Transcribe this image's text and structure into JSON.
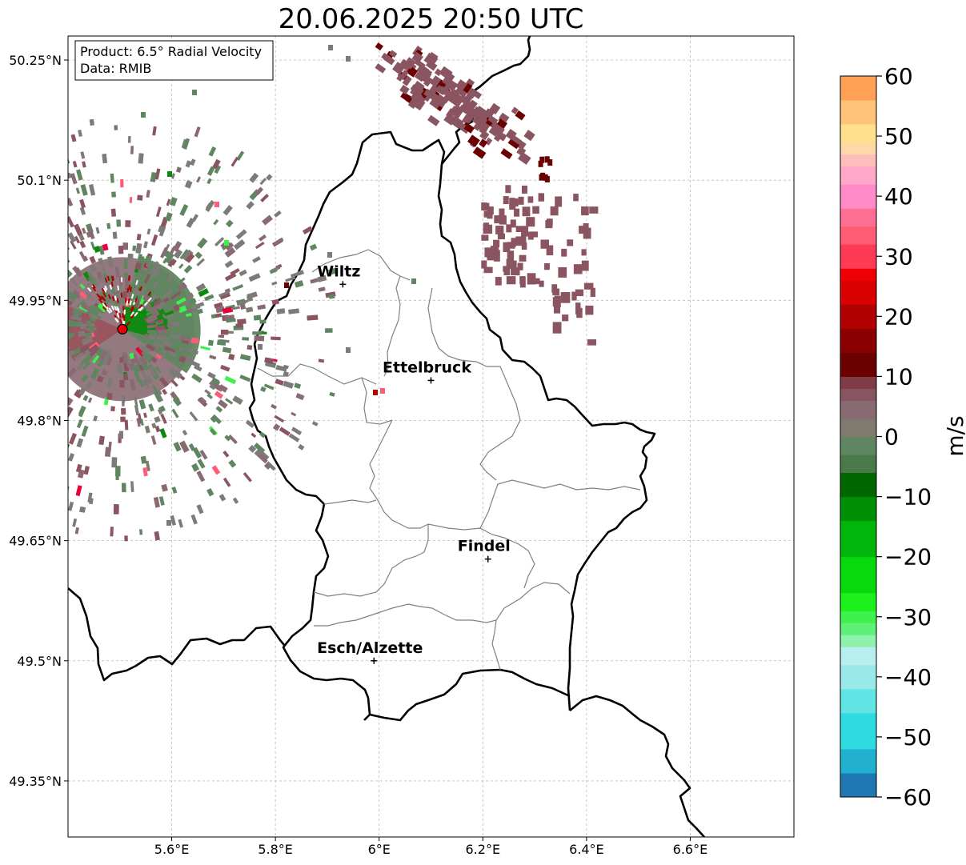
{
  "title": "20.06.2025 20:50 UTC",
  "info_box": {
    "product": "Product: 6.5° Radial Velocity",
    "source": "Data: RMIB"
  },
  "axes": {
    "lon_range": [
      5.4,
      6.8
    ],
    "lat_range": [
      49.28,
      50.28
    ],
    "lon_ticks": [
      {
        "value": 5.6,
        "label": "5.6°E"
      },
      {
        "value": 5.8,
        "label": "5.8°E"
      },
      {
        "value": 6.0,
        "label": "6°E"
      },
      {
        "value": 6.2,
        "label": "6.2°E"
      },
      {
        "value": 6.4,
        "label": "6.4°E"
      },
      {
        "value": 6.6,
        "label": "6.6°E"
      }
    ],
    "lat_ticks": [
      {
        "value": 50.25,
        "label": "50.25°N"
      },
      {
        "value": 50.1,
        "label": "50.1°N"
      },
      {
        "value": 49.95,
        "label": "49.95°N"
      },
      {
        "value": 49.8,
        "label": "49.8°N"
      },
      {
        "value": 49.65,
        "label": "49.65°N"
      },
      {
        "value": 49.5,
        "label": "49.5°N"
      },
      {
        "value": 49.35,
        "label": "49.35°N"
      }
    ]
  },
  "cities": [
    {
      "name": "Wiltz",
      "lon": 5.93,
      "lat": 49.97
    },
    {
      "name": "Ettelbruck",
      "lon": 6.1,
      "lat": 49.85
    },
    {
      "name": "Findel",
      "lon": 6.21,
      "lat": 49.627
    },
    {
      "name": "Esch/Alzette",
      "lon": 5.99,
      "lat": 49.5
    }
  ],
  "radar": {
    "lon": 5.505,
    "lat": 49.914,
    "color": "#e8000b"
  },
  "colorbar": {
    "label": "m/s",
    "min": -60,
    "max": 60,
    "ticks": [
      {
        "value": 60,
        "label": "60"
      },
      {
        "value": 50,
        "label": "50"
      },
      {
        "value": 40,
        "label": "40"
      },
      {
        "value": 30,
        "label": "30"
      },
      {
        "value": 20,
        "label": "20"
      },
      {
        "value": 10,
        "label": "10"
      },
      {
        "value": 0,
        "label": "0"
      },
      {
        "value": -10,
        "label": "−10"
      },
      {
        "value": -20,
        "label": "−20"
      },
      {
        "value": -30,
        "label": "−30"
      },
      {
        "value": -40,
        "label": "−40"
      },
      {
        "value": -50,
        "label": "−50"
      },
      {
        "value": -60,
        "label": "−60"
      }
    ],
    "stops": [
      {
        "from": -60,
        "to": -56,
        "color": "#1f77b4"
      },
      {
        "from": -56,
        "to": -52,
        "color": "#22b0cf"
      },
      {
        "from": -52,
        "to": -46,
        "color": "#30dbe0"
      },
      {
        "from": -46,
        "to": -42,
        "color": "#60e4e4"
      },
      {
        "from": -42,
        "to": -38,
        "color": "#9ae9ea"
      },
      {
        "from": -38,
        "to": -35,
        "color": "#b9eef0"
      },
      {
        "from": -35,
        "to": -33,
        "color": "#8ef2ac"
      },
      {
        "from": -33,
        "to": -31,
        "color": "#5ef077"
      },
      {
        "from": -31,
        "to": -29,
        "color": "#3ef24b"
      },
      {
        "from": -29,
        "to": -26,
        "color": "#1bf01b"
      },
      {
        "from": -26,
        "to": -20,
        "color": "#08d90c"
      },
      {
        "from": -20,
        "to": -14,
        "color": "#02b50a"
      },
      {
        "from": -14,
        "to": -10,
        "color": "#018f05"
      },
      {
        "from": -10,
        "to": -6,
        "color": "#006600"
      },
      {
        "from": -6,
        "to": -3,
        "color": "#4a7a4a"
      },
      {
        "from": -3,
        "to": 0,
        "color": "#5f8660"
      },
      {
        "from": 0,
        "to": 3,
        "color": "#7e7a6e"
      },
      {
        "from": 3,
        "to": 6,
        "color": "#8a6a72"
      },
      {
        "from": 6,
        "to": 8,
        "color": "#865560"
      },
      {
        "from": 8,
        "to": 10,
        "color": "#7f3b46"
      },
      {
        "from": 10,
        "to": 14,
        "color": "#6a0000"
      },
      {
        "from": 14,
        "to": 18,
        "color": "#8a0000"
      },
      {
        "from": 18,
        "to": 22,
        "color": "#b10000"
      },
      {
        "from": 22,
        "to": 26,
        "color": "#d80000"
      },
      {
        "from": 26,
        "to": 28,
        "color": "#f00005"
      },
      {
        "from": 28,
        "to": 32,
        "color": "#ff3a55"
      },
      {
        "from": 32,
        "to": 35,
        "color": "#ff5c75"
      },
      {
        "from": 35,
        "to": 38,
        "color": "#ff6f92"
      },
      {
        "from": 38,
        "to": 42,
        "color": "#ff8cc8"
      },
      {
        "from": 42,
        "to": 45,
        "color": "#ffa8c8"
      },
      {
        "from": 45,
        "to": 47,
        "color": "#ffbcbc"
      },
      {
        "from": 47,
        "to": 49,
        "color": "#ffd8a8"
      },
      {
        "from": 49,
        "to": 52,
        "color": "#ffe08c"
      },
      {
        "from": 52,
        "to": 56,
        "color": "#ffc37a"
      },
      {
        "from": 56,
        "to": 60,
        "color": "#ffa055"
      }
    ]
  },
  "colors": {
    "border": "#000000",
    "cantons": "#808080",
    "grid": "#bbbbbb",
    "echo_brown": "#8a5560",
    "echo_dark_red": "#6a0000",
    "echo_gray": "#7e7a78",
    "echo_green": "#5f8660"
  }
}
